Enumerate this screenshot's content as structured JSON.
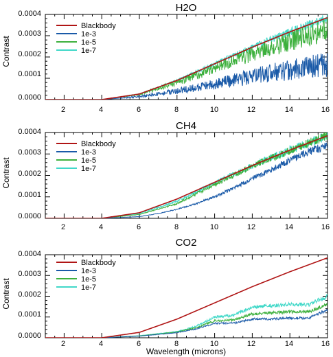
{
  "chart_data": [
    {
      "type": "line",
      "title": "H2O",
      "xlabel": "",
      "ylabel": "Contrast",
      "xlim": [
        1,
        16
      ],
      "ylim": [
        0,
        0.0004
      ],
      "xticks": [
        "2",
        "4",
        "6",
        "8",
        "10",
        "12",
        "14",
        "16"
      ],
      "yticks": [
        "0.0000",
        "0.0001",
        "0.0002",
        "0.0003",
        "0.0004"
      ],
      "legend_position": "top-left",
      "series": [
        {
          "name": "Blackbody",
          "color": "#b01515",
          "x": [
            4,
            6,
            8,
            10,
            12,
            14,
            16
          ],
          "y": [
            0,
            2.6e-05,
            9e-05,
            0.000168,
            0.000246,
            0.000318,
            0.000385
          ]
        },
        {
          "name": "1e-3",
          "color": "#1a5aa8",
          "x": [
            4,
            6,
            7,
            8,
            9,
            10,
            11,
            12,
            13,
            14,
            15,
            16
          ],
          "y": [
            0,
            1.4e-05,
            2.6e-05,
            4e-05,
            5.5e-05,
            7.2e-05,
            9e-05,
            0.000108,
            0.000125,
            0.00014,
            0.000155,
            0.000165
          ]
        },
        {
          "name": "1e-5",
          "color": "#3cb03c",
          "x": [
            4,
            6,
            8,
            10,
            12,
            14,
            16
          ],
          "y": [
            0,
            2.4e-05,
            8e-05,
            0.000148,
            0.000215,
            0.000275,
            0.00033
          ]
        },
        {
          "name": "1e-7",
          "color": "#40d8c8",
          "x": [
            4,
            6,
            8,
            10,
            12,
            14,
            16
          ],
          "y": [
            0,
            2.6e-05,
            9e-05,
            0.000168,
            0.000246,
            0.000318,
            0.000385
          ]
        }
      ]
    },
    {
      "type": "line",
      "title": "CH4",
      "xlabel": "",
      "ylabel": "Contrast",
      "xlim": [
        1,
        16
      ],
      "ylim": [
        0,
        0.0004
      ],
      "xticks": [
        "2",
        "4",
        "6",
        "8",
        "10",
        "12",
        "14",
        "16"
      ],
      "yticks": [
        "0.0000",
        "0.0001",
        "0.0002",
        "0.0003",
        "0.0004"
      ],
      "legend_position": "top-left",
      "series": [
        {
          "name": "Blackbody",
          "color": "#b01515",
          "x": [
            4,
            6,
            8,
            10,
            12,
            14,
            16
          ],
          "y": [
            0,
            2.6e-05,
            9e-05,
            0.000168,
            0.000246,
            0.000318,
            0.000385
          ]
        },
        {
          "name": "1e-3",
          "color": "#1a5aa8",
          "x": [
            4,
            6,
            7,
            8,
            9,
            10,
            11,
            12,
            13,
            14,
            15,
            16
          ],
          "y": [
            0,
            8e-06,
            2.2e-05,
            4.2e-05,
            6.8e-05,
            0.0001,
            0.00014,
            0.000185,
            0.000225,
            0.00027,
            0.00031,
            0.00034
          ]
        },
        {
          "name": "1e-5",
          "color": "#3cb03c",
          "x": [
            4,
            6,
            8,
            10,
            12,
            14,
            16
          ],
          "y": [
            0,
            1.8e-05,
            6.8e-05,
            0.000158,
            0.000243,
            0.000316,
            0.000385
          ]
        },
        {
          "name": "1e-7",
          "color": "#40d8c8",
          "x": [
            4,
            6,
            8,
            10,
            12,
            14,
            16
          ],
          "y": [
            0,
            2.2e-05,
            8e-05,
            0.000165,
            0.000245,
            0.000318,
            0.000385
          ]
        }
      ]
    },
    {
      "type": "line",
      "title": "CO2",
      "xlabel": "Wavelength (microns)",
      "ylabel": "Contrast",
      "xlim": [
        1,
        16
      ],
      "ylim": [
        0,
        0.0004
      ],
      "xticks": [
        "2",
        "4",
        "6",
        "8",
        "10",
        "12",
        "14",
        "16"
      ],
      "yticks": [
        "0.0000",
        "0.0001",
        "0.0002",
        "0.0003",
        "0.0004"
      ],
      "legend_position": "top-left",
      "series": [
        {
          "name": "Blackbody",
          "color": "#b01515",
          "x": [
            4,
            6,
            8,
            10,
            12,
            14,
            16
          ],
          "y": [
            0,
            2.6e-05,
            9e-05,
            0.000168,
            0.000246,
            0.000318,
            0.000385
          ]
        },
        {
          "name": "1e-3",
          "color": "#1a5aa8",
          "x": [
            4,
            6,
            7,
            8,
            9,
            10,
            11,
            12,
            13,
            14,
            15,
            16
          ],
          "y": [
            0,
            8e-06,
            1.6e-05,
            2.5e-05,
            4.2e-05,
            7e-05,
            7e-05,
            9e-05,
            9e-05,
            9.5e-05,
            9.5e-05,
            0.000135
          ]
        },
        {
          "name": "1e-5",
          "color": "#3cb03c",
          "x": [
            4,
            6,
            7,
            8,
            9,
            10,
            11,
            12,
            13,
            14,
            15,
            16
          ],
          "y": [
            0,
            9e-06,
            1.8e-05,
            2.8e-05,
            4.8e-05,
            8.2e-05,
            8.5e-05,
            0.000115,
            0.00012,
            0.000125,
            0.000125,
            0.00016
          ]
        },
        {
          "name": "1e-7",
          "color": "#40d8c8",
          "x": [
            4,
            6,
            7,
            8,
            9,
            10,
            11,
            12,
            13,
            14,
            15,
            16
          ],
          "y": [
            0,
            1e-05,
            2e-05,
            3e-05,
            5.5e-05,
            0.0001,
            0.000108,
            0.000148,
            0.000155,
            0.00016,
            0.00016,
            0.0002
          ]
        }
      ]
    }
  ]
}
